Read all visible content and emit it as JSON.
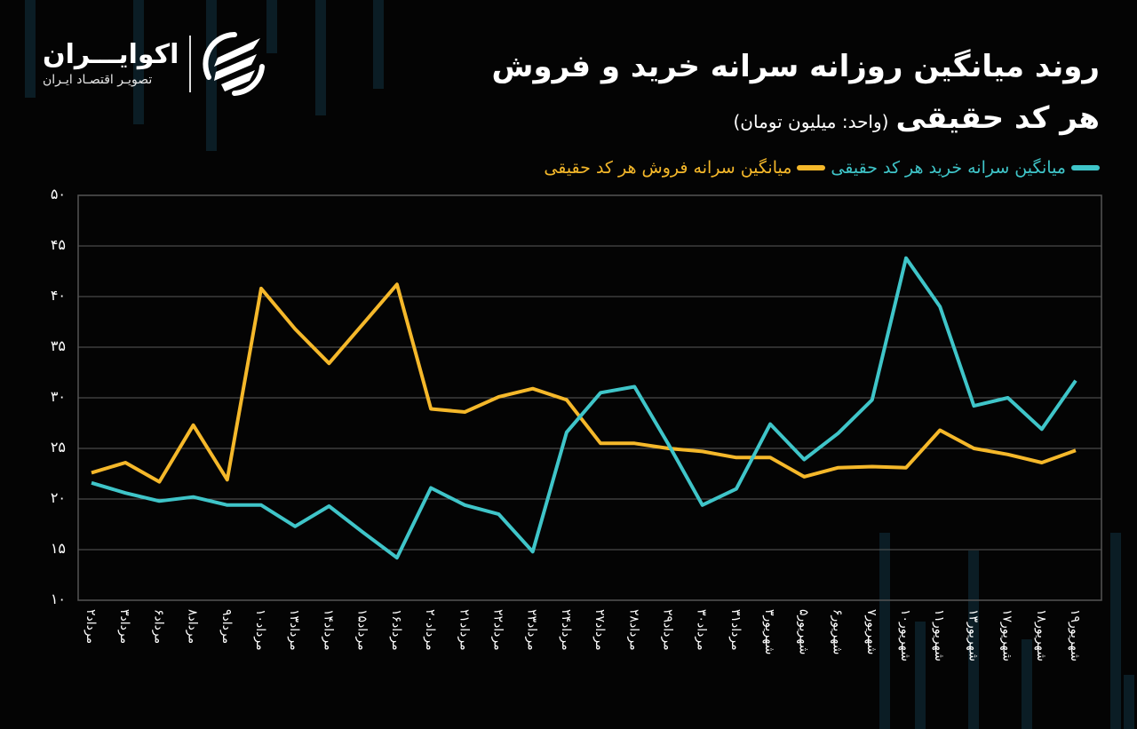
{
  "header": {
    "title_line1": "روند میانگین روزانه سرانه خرید و فروش",
    "title_line2": "هر کد حقیقی",
    "unit_note": "(واحد: میلیون تومان)"
  },
  "logo": {
    "name": "اکوایـــران",
    "subtitle": "تصویـر اقتصـاد ایـران"
  },
  "legend": [
    {
      "label": "میانگین سرانه خرید هر کد حقیقی",
      "color": "#3fc5c9"
    },
    {
      "label": "میانگین سرانه فروش هر کد حقیقی",
      "color": "#f5b82a"
    }
  ],
  "y_ticks": [
    "۵۰",
    "۴۵",
    "۴۰",
    "۳۵",
    "۳۰",
    "۲۵",
    "۲۰",
    "۱۵",
    "۱۰"
  ],
  "chart_data": {
    "type": "line",
    "title": "روند میانگین روزانه سرانه خرید و فروش هر کد حقیقی (واحد: میلیون تومان)",
    "xlabel": "",
    "ylabel": "میلیون تومان",
    "ylim": [
      10,
      50
    ],
    "grid": true,
    "legend_position": "top-right",
    "categories": [
      "مرداد۲",
      "مرداد۳",
      "مرداد۶",
      "مرداد۸",
      "مرداد۹",
      "مرداد۱۰",
      "مرداد۱۳",
      "مرداد۱۴",
      "مرداد۱۵",
      "مرداد۱۶",
      "مرداد۲۰",
      "مرداد۲۱",
      "مرداد۲۲",
      "مرداد۲۳",
      "مرداد۲۴",
      "مرداد۲۷",
      "مرداد۲۸",
      "مرداد۲۹",
      "مرداد۳۰",
      "مرداد۳۱",
      "شهریور۳",
      "شهریور۵",
      "شهریور۶",
      "شهریور۷",
      "شهریور۱۰",
      "شهریور۱۱",
      "شهریور۱۳",
      "شهریور۱۷",
      "شهریور۱۸",
      "شهریور۱۹"
    ],
    "series": [
      {
        "name": "میانگین سرانه خرید هر کد حقیقی",
        "color": "#3fc5c9",
        "values": [
          21.6,
          20.6,
          19.8,
          20.2,
          19.4,
          19.4,
          17.3,
          19.3,
          16.7,
          14.2,
          21.1,
          19.4,
          18.5,
          14.8,
          26.6,
          30.5,
          31.1,
          25.4,
          19.4,
          21.0,
          27.4,
          23.9,
          26.5,
          29.8,
          43.8,
          39.0,
          29.2,
          30.0,
          26.9,
          31.7
        ]
      },
      {
        "name": "میانگین سرانه فروش هر کد حقیقی",
        "color": "#f5b82a",
        "values": [
          22.6,
          23.6,
          21.7,
          27.3,
          21.9,
          40.8,
          36.8,
          33.4,
          37.3,
          41.2,
          28.9,
          28.6,
          30.1,
          30.9,
          29.8,
          25.5,
          25.5,
          25.0,
          24.7,
          24.1,
          24.1,
          22.2,
          23.1,
          23.2,
          23.1,
          26.8,
          25.0,
          24.4,
          23.6,
          24.8
        ]
      }
    ]
  }
}
